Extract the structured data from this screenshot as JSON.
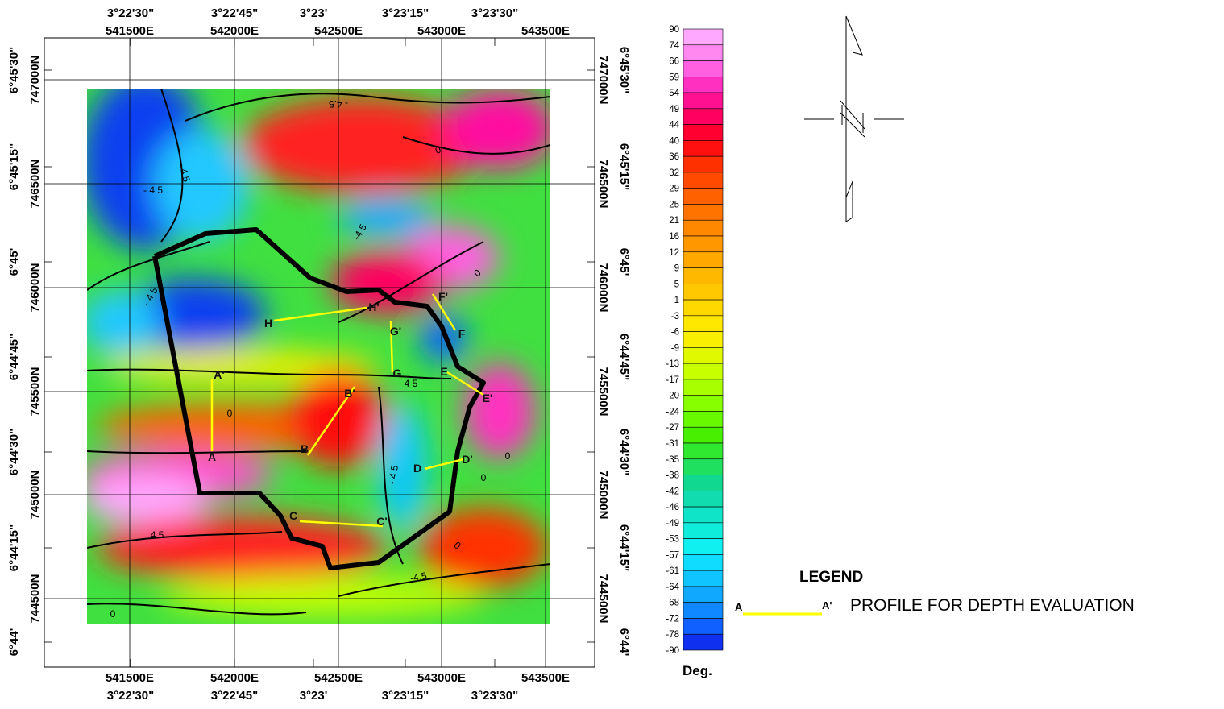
{
  "top_axis": {
    "dms": [
      "3°22'30\"",
      "3°22'45\"",
      "3°23'",
      "3°23'15\"",
      "3°23'30\""
    ],
    "easting": [
      "541500E",
      "542000E",
      "542500E",
      "543000E",
      "543500E"
    ]
  },
  "bottom_axis": {
    "dms": [
      "3°22'30\"",
      "3°22'45\"",
      "3°23'",
      "3°23'15\"",
      "3°23'30\""
    ],
    "easting": [
      "541500E",
      "542000E",
      "542500E",
      "543000E",
      "543500E"
    ]
  },
  "left_axis": {
    "northing": [
      "747000N",
      "746500N",
      "746000N",
      "745500N",
      "745000N",
      "744500N"
    ],
    "dms": [
      "6°45'30\"",
      "6°45'15\"",
      "6°45'",
      "6°44'45\"",
      "6°44'30\"",
      "6°44'15\"",
      "6°44'"
    ]
  },
  "right_axis": {
    "northing": [
      "747000N",
      "746500N",
      "746000N",
      "745500N",
      "745000N",
      "744500N"
    ],
    "dms": [
      "6°45'30\"",
      "6°45'15\"",
      "6°45'",
      "6°44'45\"",
      "6°44'30\"",
      "6°44'15\"",
      "6°44'"
    ]
  },
  "colorbar": {
    "labels": [
      "90",
      "74",
      "66",
      "59",
      "54",
      "49",
      "44",
      "40",
      "36",
      "32",
      "29",
      "25",
      "21",
      "16",
      "12",
      "9",
      "5",
      "1",
      "-3",
      "-6",
      "-9",
      "-13",
      "-17",
      "-20",
      "-24",
      "-27",
      "-31",
      "-35",
      "-38",
      "-42",
      "-46",
      "-49",
      "-53",
      "-57",
      "-61",
      "-64",
      "-68",
      "-72",
      "-78",
      "-90"
    ],
    "unit": "Deg.",
    "colors": [
      "#ffa8ff",
      "#ff88f0",
      "#ff60e0",
      "#ff30c0",
      "#ff1090",
      "#ff0060",
      "#ff0030",
      "#ff1010",
      "#ff3000",
      "#ff4a00",
      "#ff6000",
      "#ff7400",
      "#ff8800",
      "#ff9800",
      "#ffa800",
      "#ffb800",
      "#ffc800",
      "#ffd800",
      "#ffe800",
      "#f8f000",
      "#e0f800",
      "#c8ff00",
      "#a8ff00",
      "#88ff00",
      "#68f800",
      "#48f000",
      "#30e830",
      "#20e060",
      "#10d890",
      "#10dcb0",
      "#10e4c8",
      "#10ecdc",
      "#10f0f0",
      "#10dcff",
      "#10c4ff",
      "#10a8ff",
      "#1088ff",
      "#1060ff",
      "#1030f0"
    ]
  },
  "profiles": [
    [
      "A",
      "A'"
    ],
    [
      "B",
      "B'"
    ],
    [
      "C",
      "C'"
    ],
    [
      "D",
      "D'"
    ],
    [
      "E",
      "E'"
    ],
    [
      "F",
      "F'"
    ],
    [
      "G",
      "G'"
    ],
    [
      "H",
      "H'"
    ]
  ],
  "contour_labels": [
    "- 4 5",
    "- 4.5",
    "0",
    "-4 5",
    "0",
    "- 4 5",
    "4 5",
    "0",
    "0",
    "-4.5",
    "0",
    "4 5",
    "- 4 5",
    "0",
    "- 4 5",
    "0"
  ],
  "legend": {
    "title": "LEGEND",
    "start": "A",
    "end": "A'",
    "text": "PROFILE FOR DEPTH EVALUATION"
  }
}
